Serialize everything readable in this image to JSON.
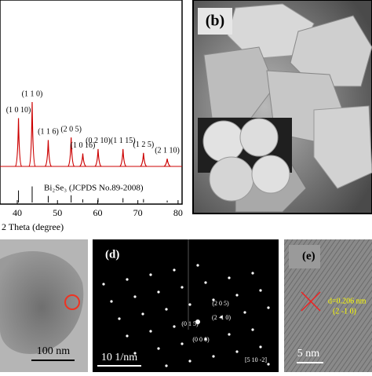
{
  "xrd": {
    "x_label": "2 Theta (degree)",
    "xlim": [
      35.7,
      81
    ],
    "xticks": [
      40,
      50,
      60,
      70,
      80
    ],
    "reference": "Bi₂Se₃ (JCPDS No.89-2008)",
    "peaks": [
      {
        "label": "(1 0 10)",
        "x": 40.3,
        "intensity": 75
      },
      {
        "label": "(1 1 0)",
        "x": 43.7,
        "intensity": 100
      },
      {
        "label": "(1 1 6)",
        "x": 47.7,
        "intensity": 41
      },
      {
        "label": "(2 0 5)",
        "x": 53.4,
        "intensity": 45
      },
      {
        "label": "(1 0 16)",
        "x": 56.3,
        "intensity": 20
      },
      {
        "label": "(0 2 10)",
        "x": 60.1,
        "intensity": 27
      },
      {
        "label": "(1 1 15)",
        "x": 66.3,
        "intensity": 27
      },
      {
        "label": "(1 2 5)",
        "x": 71.4,
        "intensity": 21
      },
      {
        "label": "(2 1 10)",
        "x": 77.3,
        "intensity": 12
      }
    ]
  },
  "panel_b": {
    "label": "(b)"
  },
  "panel_c": {
    "scale_bar": "100 nm"
  },
  "panel_d": {
    "label": "(d)",
    "scale_bar": "10 1/nm",
    "spots": [
      "(0 1 5)",
      "(2 0 5)",
      "(2 -1 0)",
      "(0 0 0)"
    ],
    "zone_axis": "[5 10 -2]"
  },
  "panel_e": {
    "label": "(e)",
    "d_spacing": "d=0.206 nm",
    "plane": "(2 -1 0)",
    "scale_bar": "5 nm"
  }
}
